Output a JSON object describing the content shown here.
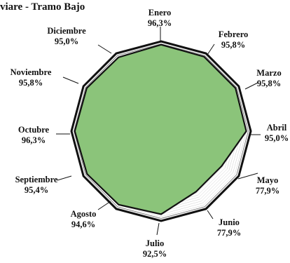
{
  "chart_data": {
    "type": "radar",
    "title": "viare - Tramo Bajo",
    "categories": [
      "Enero",
      "Febrero",
      "Marzo",
      "Abril",
      "Mayo",
      "Junio",
      "Julio",
      "Agosto",
      "Septiembre",
      "Octubre",
      "Noviembre",
      "Diciembre"
    ],
    "value_labels": [
      "96,3%",
      "95,8%",
      "95,8%",
      "95,0%",
      "77,9%",
      "77,9%",
      "92,5%",
      "94,6%",
      "95,4%",
      "96,3%",
      "95,8%",
      "95,0%"
    ],
    "values": [
      96.3,
      95.8,
      95.8,
      95.0,
      77.9,
      77.9,
      92.5,
      94.6,
      95.4,
      96.3,
      95.8,
      95.0
    ],
    "r_max": 100,
    "colors": {
      "fill": "#8bc47a",
      "outline": "#111111"
    }
  }
}
